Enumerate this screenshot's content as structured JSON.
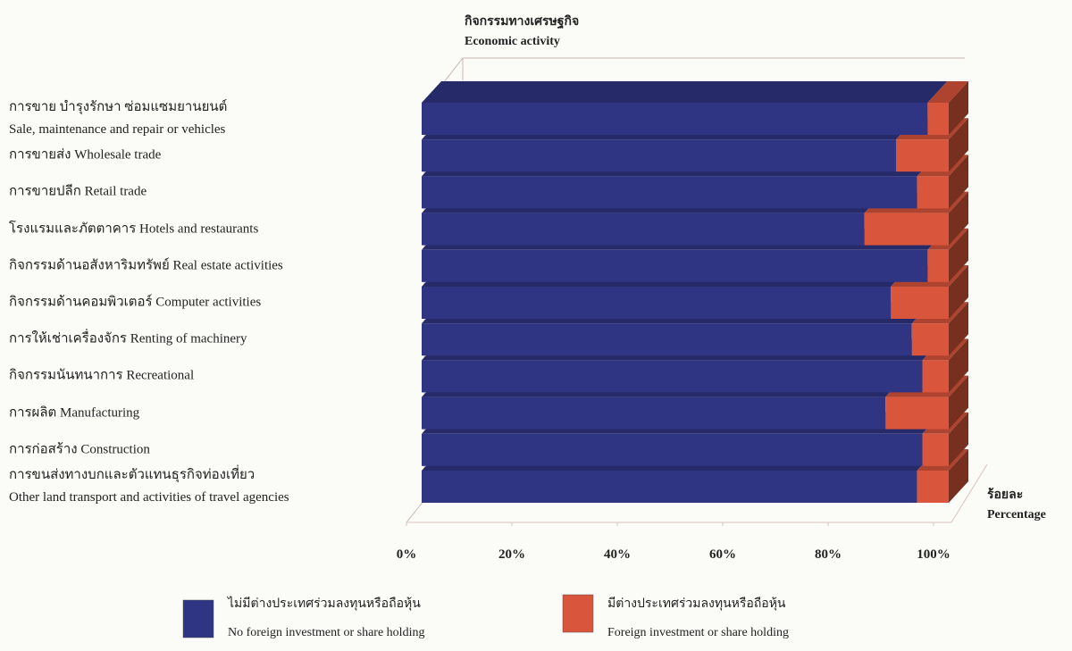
{
  "chart_data": {
    "type": "bar",
    "title": "กิจกรรมทางเศรษฐกิจ\nEconomic activity",
    "x_label": "ร้อยละ\nPercentage",
    "categories": [
      "การขาย บำรุงรักษา ซ่อมแซมยานยนต์\nSale, maintenance and repair or vehicles",
      "การขายส่ง  Wholesale trade",
      "การขายปลีก  Retail trade",
      "โรงแรมและภัตตาคาร  Hotels and restaurants",
      "กิจกรรมด้านอสังหาริมทรัพย์  Real estate activities",
      "กิจกรรมด้านคอมพิวเตอร์  Computer activities",
      "การให้เช่าเครื่องจักร  Renting of machinery",
      "กิจกรรมนันทนาการ  Recreational",
      "การผลิต  Manufacturing",
      "การก่อสร้าง  Construction",
      "การขนส่งทางบกและตัวแทนธุรกิจท่องเที่ยว\nOther land transport and activities of travel agencies"
    ],
    "series": [
      {
        "name": "ไม่มีต่างประเทศร่วมลงทุนหรือถือหุ้น\nNo foreign investment or share holding",
        "color": "#2f3583",
        "values": [
          96,
          90,
          94,
          84,
          96,
          89,
          93,
          95,
          88,
          95,
          94
        ]
      },
      {
        "name": "มีต่างประเทศร่วมลงทุนหรือถือหุ้น\nForeign investment or share holding",
        "color": "#d9553b",
        "values": [
          4,
          10,
          6,
          16,
          4,
          11,
          7,
          5,
          12,
          5,
          6
        ]
      }
    ],
    "xlim": [
      0,
      100
    ],
    "xticks": [
      {
        "value": 0,
        "label": "0%"
      },
      {
        "value": 20,
        "label": "20%"
      },
      {
        "value": 40,
        "label": "40%"
      },
      {
        "value": 60,
        "label": "60%"
      },
      {
        "value": 80,
        "label": "80%"
      },
      {
        "value": 100,
        "label": "100%"
      }
    ],
    "stacked": true,
    "orientation": "horizontal"
  }
}
